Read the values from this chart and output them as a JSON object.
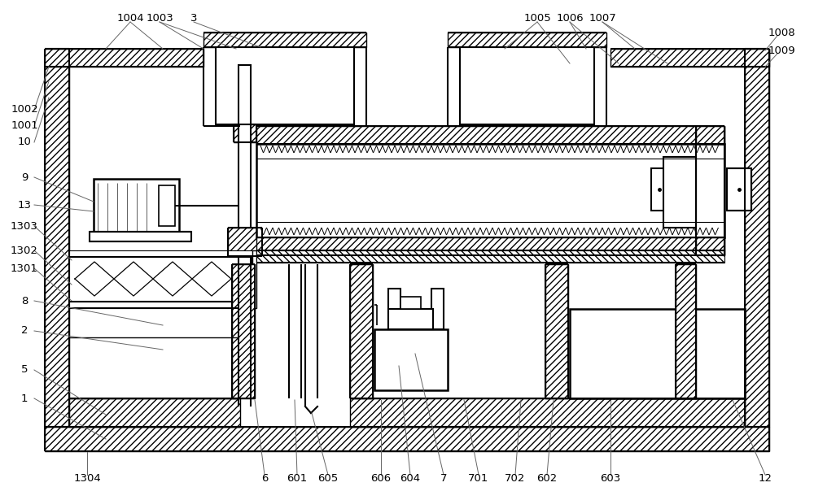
{
  "bg_color": "#ffffff",
  "line_color": "#000000",
  "fig_width": 10.0,
  "fig_height": 6.15,
  "gray": "#888888"
}
